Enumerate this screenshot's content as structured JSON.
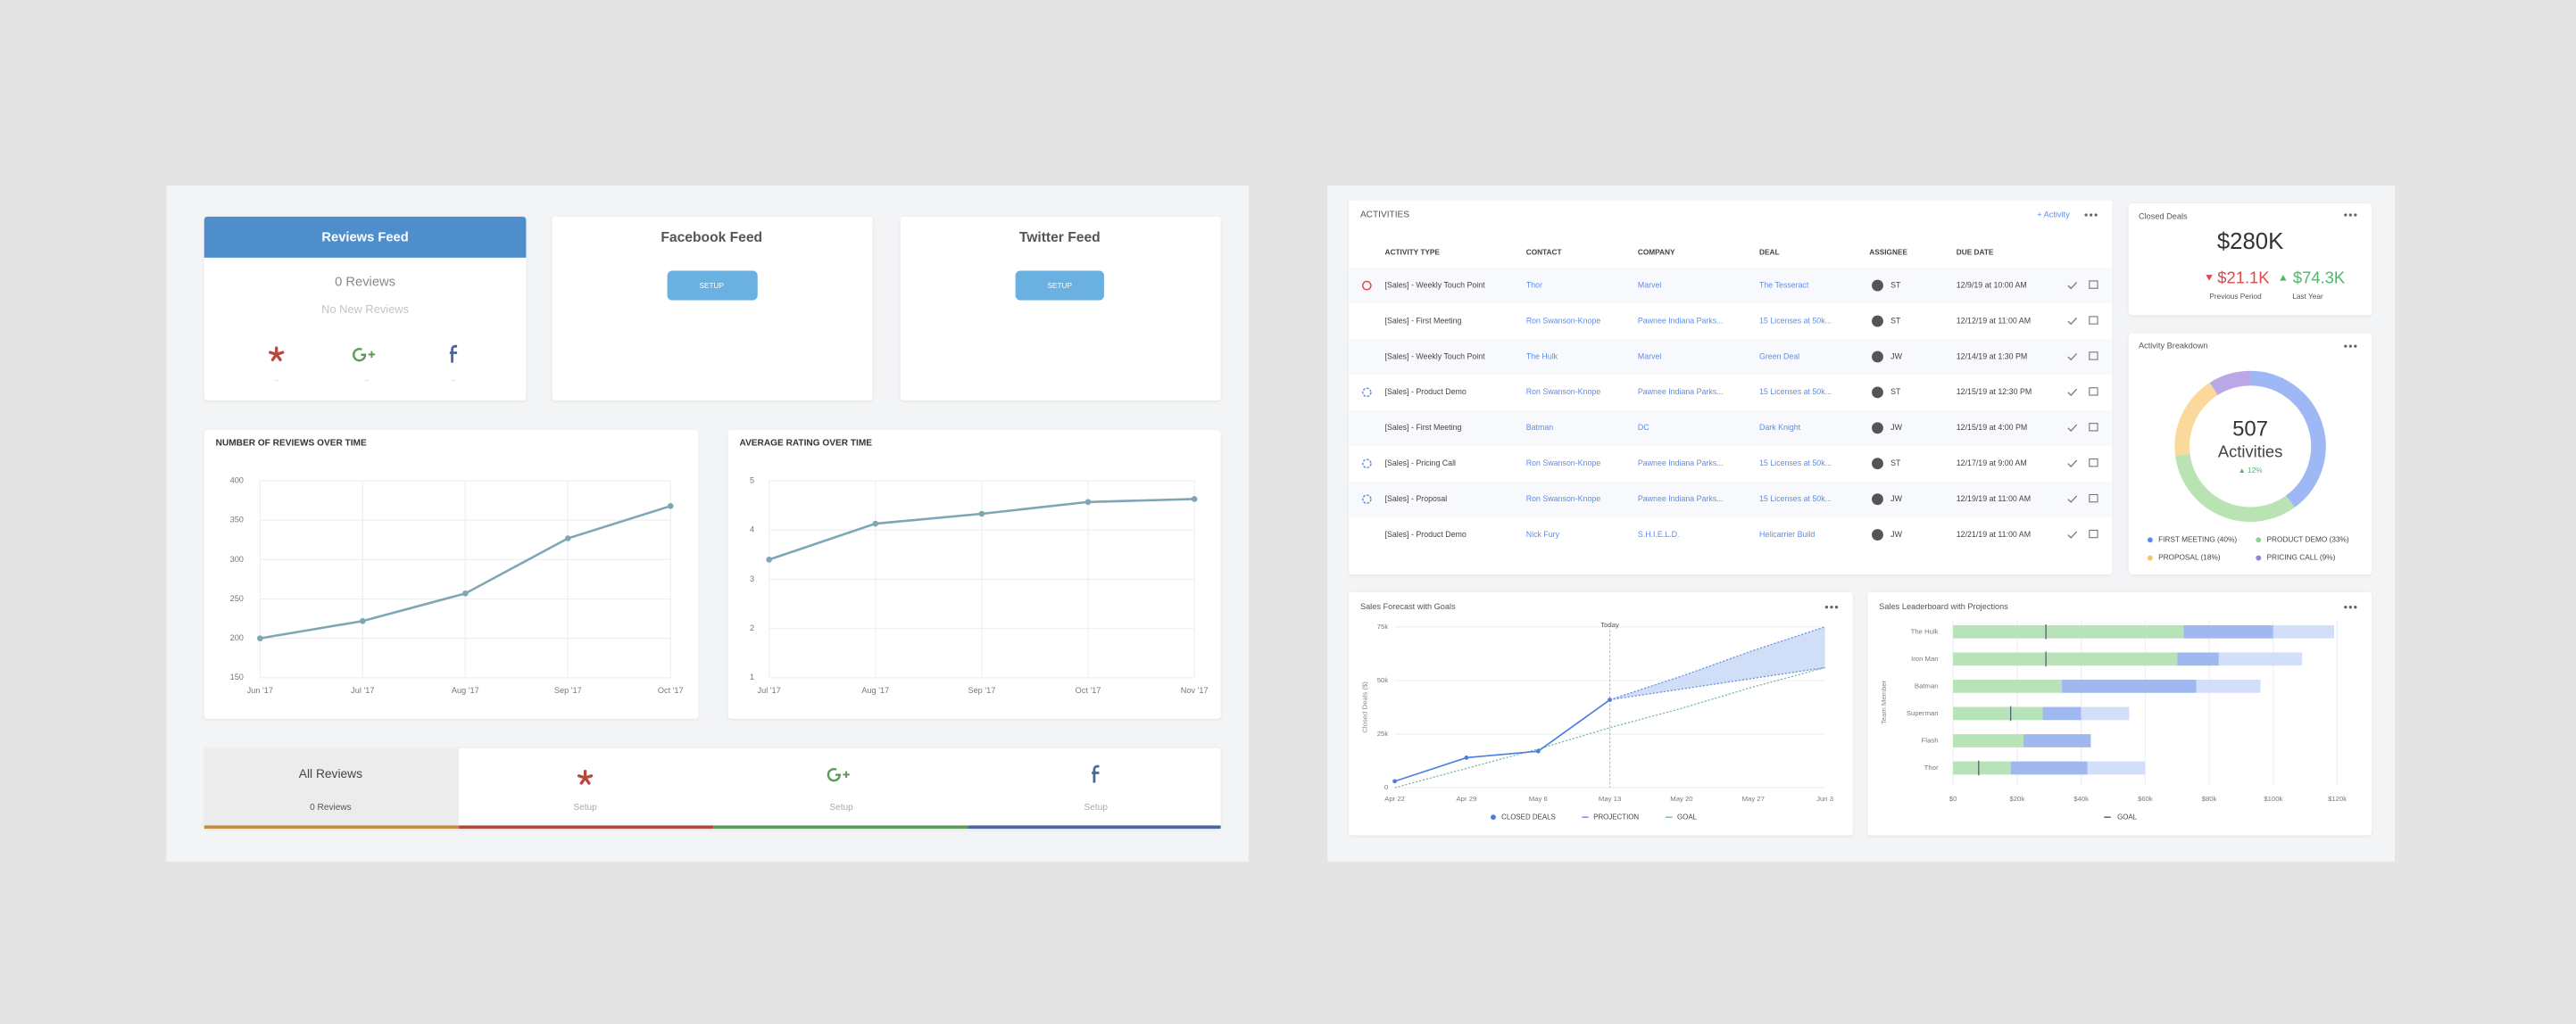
{
  "reviews_feed": {
    "title": "Reviews Feed",
    "count": "0 Reviews",
    "status": "No New Reviews",
    "sources": [
      "--",
      "--",
      "--"
    ]
  },
  "facebook_feed": {
    "title": "Facebook Feed",
    "button": "SETUP"
  },
  "twitter_feed": {
    "title": "Twitter Feed",
    "button": "SETUP"
  },
  "review_tabs": {
    "all": {
      "title": "All Reviews",
      "count": "0 Reviews"
    },
    "sources": [
      "Setup",
      "Setup",
      "Setup"
    ]
  },
  "activities": {
    "title": "ACTIVITIES",
    "add": "+ Activity",
    "columns": [
      "ACTIVITY TYPE",
      "CONTACT",
      "COMPANY",
      "DEAL",
      "ASSIGNEE",
      "DUE DATE"
    ],
    "rows": [
      [
        "[Sales] - Weekly Touch Point",
        "Thor",
        "Marvel",
        "The Tesseract",
        "ST",
        "12/9/19 at 10:00 AM"
      ],
      [
        "[Sales] - First Meeting",
        "Ron Swanson-Knope",
        "Pawnee Indiana Parks...",
        "15 Licenses at 50k...",
        "ST",
        "12/12/19 at 11:00 AM"
      ],
      [
        "[Sales] - Weekly Touch Point",
        "The Hulk",
        "Marvel",
        "Green Deal",
        "JW",
        "12/14/19 at 1:30 PM"
      ],
      [
        "[Sales] - Product Demo",
        "Ron Swanson-Knope",
        "Pawnee Indiana Parks...",
        "15 Licenses at 50k...",
        "ST",
        "12/15/19 at 12:30 PM"
      ],
      [
        "[Sales] - First Meeting",
        "Batman",
        "DC",
        "Dark Knight",
        "JW",
        "12/15/19 at 4:00 PM"
      ],
      [
        "[Sales] - Pricing Call",
        "Ron Swanson-Knope",
        "Pawnee Indiana Parks...",
        "15 Licenses at 50k...",
        "ST",
        "12/17/19 at 9:00 AM"
      ],
      [
        "[Sales] - Proposal",
        "Ron Swanson-Knope",
        "Pawnee Indiana Parks...",
        "15 Licenses at 50k...",
        "JW",
        "12/19/19 at 11:00 AM"
      ],
      [
        "[Sales] - Product Demo",
        "Nick Fury",
        "S.H.I.E.L.D.",
        "Helicarrier Build",
        "JW",
        "12/21/19 at 11:00 AM"
      ]
    ]
  },
  "closed_deals": {
    "title": "Closed Deals",
    "total": "$280K",
    "previous": {
      "value": "$21.1K",
      "label": "Previous Period"
    },
    "last_year": {
      "value": "$74.3K",
      "label": "Last Year"
    }
  },
  "chart_data": [
    {
      "type": "line",
      "title": "NUMBER OF REVIEWS OVER TIME",
      "categories": [
        "Jun '17",
        "Jul '17",
        "Aug '17",
        "Sep '17",
        "Oct '17"
      ],
      "values": [
        200,
        222,
        257,
        327,
        368
      ],
      "color": "#7ea6b4",
      "ylim": [
        150,
        400
      ],
      "yticks": [
        150,
        200,
        250,
        300,
        350,
        400
      ],
      "grid": true
    },
    {
      "type": "line",
      "title": "AVERAGE RATING OVER TIME",
      "categories": [
        "Jul '17",
        "Aug '17",
        "Sep '17",
        "Oct '17",
        "Nov '17"
      ],
      "values": [
        3.4,
        4.13,
        4.33,
        4.57,
        4.63
      ],
      "color": "#7ea6b4",
      "ylim": [
        1,
        5
      ],
      "yticks": [
        1,
        2,
        3,
        4,
        5
      ],
      "grid": true
    },
    {
      "type": "pie",
      "title": "Activity Breakdown",
      "center": {
        "total": "507",
        "caption": "Activities",
        "change": "▲ 12%"
      },
      "categories": [
        "FIRST MEETING (40%)",
        "PRODUCT DEMO (33%)",
        "PROPOSAL (18%)",
        "PRICING CALL (9%)"
      ],
      "values": [
        40,
        33,
        18,
        9
      ],
      "colors": [
        "#9db8f4",
        "#b9e3b3",
        "#fbd89c",
        "#bba6e6"
      ],
      "legend_colors": [
        "#5b8def",
        "#8fd08a",
        "#f6c26b",
        "#9a80dc"
      ]
    },
    {
      "type": "forecast",
      "title": "Sales Forecast with Goals",
      "ylabel": "Closed Deals ($)",
      "categories": [
        "Apr 22",
        "Apr 29",
        "May 6",
        "May 13",
        "May 20",
        "May 27",
        "Jun 3"
      ],
      "annotation": {
        "text": "Today",
        "index": 3
      },
      "series": [
        {
          "name": "CLOSED DEALS",
          "color": "#4a7fe0",
          "values": [
            3000,
            14000,
            17000,
            41000,
            null,
            null,
            null
          ]
        },
        {
          "name": "PROJECTION",
          "color": "#6b93e6",
          "values": [
            null,
            null,
            null,
            41000,
            52000,
            64000,
            75000
          ],
          "lower": [
            null,
            null,
            null,
            41000,
            46000,
            51000,
            56000
          ]
        },
        {
          "name": "GOAL",
          "color": "#7fb8a0",
          "values": [
            0,
            9000,
            18000,
            28000,
            37000,
            47000,
            56000
          ]
        }
      ],
      "ylim": [
        0,
        75000
      ],
      "yticks": [
        0,
        {
          "value": 25000,
          "label": "25k"
        },
        {
          "value": 50000,
          "label": "50k"
        },
        {
          "value": 75000,
          "label": "75k"
        }
      ],
      "grid": true
    },
    {
      "type": "hbar",
      "title": "Sales Leaderboard with Projections",
      "ylabel": "Team Member",
      "categories": [
        "The Hulk",
        "Iron Man",
        "Batman",
        "Superman",
        "Flash",
        "Thor"
      ],
      "series": [
        {
          "color": "#b8e2b7",
          "values": [
            72000,
            70000,
            34000,
            28000,
            22000,
            18000
          ]
        },
        {
          "color": "#9fb8ef",
          "values": [
            28000,
            13000,
            42000,
            12000,
            21000,
            24000
          ]
        },
        {
          "color": "#d3defa",
          "values": [
            19000,
            26000,
            20000,
            15000,
            null,
            18000
          ]
        }
      ],
      "goal": {
        "name": "GOAL",
        "color": "#55606e",
        "values": [
          29000,
          29000,
          null,
          18000,
          null,
          8000
        ]
      },
      "xlim": [
        0,
        120000
      ],
      "xticks": [
        {
          "value": 0,
          "label": "$0"
        },
        {
          "value": 20000,
          "label": "$20k"
        },
        {
          "value": 40000,
          "label": "$40k"
        },
        {
          "value": 60000,
          "label": "$60k"
        },
        {
          "value": 80000,
          "label": "$80k"
        },
        {
          "value": 100000,
          "label": "$100k"
        },
        {
          "value": 120000,
          "label": "$120k"
        }
      ],
      "grid": true
    }
  ]
}
